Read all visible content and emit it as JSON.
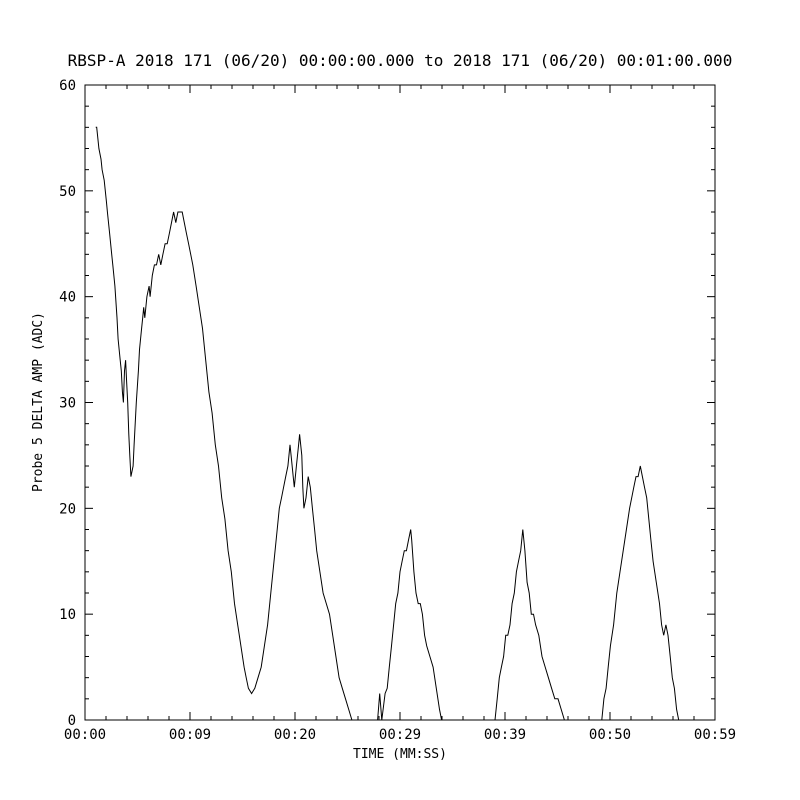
{
  "chart_data": {
    "type": "line",
    "title": "RBSP-A 2018 171 (06/20) 00:00:00.000 to 2018 171 (06/20) 00:01:00.000",
    "xlabel": "TIME (MM:SS)",
    "ylabel": "Probe 5 DELTA AMP (ADC)",
    "xlim": [
      0,
      59
    ],
    "ylim": [
      0,
      60
    ],
    "grid": "off",
    "legend": "none",
    "line_color": "#000000",
    "background_color": "#ffffff",
    "x_ticks": [
      {
        "pos": 0,
        "label": "00:00"
      },
      {
        "pos": 9.8333,
        "label": "00:09"
      },
      {
        "pos": 19.6667,
        "label": "00:20"
      },
      {
        "pos": 29.5,
        "label": "00:29"
      },
      {
        "pos": 39.3333,
        "label": "00:39"
      },
      {
        "pos": 49.1667,
        "label": "00:50"
      },
      {
        "pos": 59,
        "label": "00:59"
      }
    ],
    "y_ticks": [
      0,
      10,
      20,
      30,
      40,
      50,
      60
    ],
    "series": [
      {
        "name": "Probe 5 DELTA AMP (ADC)",
        "points": [
          [
            1.0,
            56
          ],
          [
            1.1,
            56
          ],
          [
            1.3,
            54
          ],
          [
            1.5,
            53
          ],
          [
            1.6,
            52
          ],
          [
            1.8,
            51
          ],
          [
            2.0,
            49
          ],
          [
            2.1,
            48
          ],
          [
            2.3,
            46
          ],
          [
            2.5,
            44
          ],
          [
            2.6,
            43
          ],
          [
            2.8,
            41
          ],
          [
            3.0,
            38
          ],
          [
            3.1,
            36
          ],
          [
            3.3,
            34
          ],
          [
            3.4,
            33
          ],
          [
            3.5,
            31
          ],
          [
            3.6,
            30
          ],
          [
            3.7,
            33
          ],
          [
            3.8,
            34
          ],
          [
            3.9,
            32
          ],
          [
            4.0,
            30
          ],
          [
            4.1,
            27
          ],
          [
            4.2,
            25
          ],
          [
            4.3,
            23
          ],
          [
            4.5,
            24
          ],
          [
            4.6,
            26
          ],
          [
            4.8,
            30
          ],
          [
            5.0,
            33
          ],
          [
            5.1,
            35
          ],
          [
            5.3,
            37
          ],
          [
            5.4,
            38
          ],
          [
            5.5,
            39
          ],
          [
            5.6,
            38
          ],
          [
            5.8,
            40
          ],
          [
            6.0,
            41
          ],
          [
            6.1,
            40
          ],
          [
            6.3,
            42
          ],
          [
            6.5,
            43
          ],
          [
            6.7,
            43
          ],
          [
            6.9,
            44
          ],
          [
            7.1,
            43
          ],
          [
            7.3,
            44
          ],
          [
            7.5,
            45
          ],
          [
            7.7,
            45
          ],
          [
            7.9,
            46
          ],
          [
            8.1,
            47
          ],
          [
            8.3,
            48
          ],
          [
            8.5,
            47
          ],
          [
            8.7,
            48
          ],
          [
            8.9,
            48
          ],
          [
            9.1,
            48
          ],
          [
            9.3,
            47
          ],
          [
            9.5,
            46
          ],
          [
            9.7,
            45
          ],
          [
            9.9,
            44
          ],
          [
            10.1,
            43
          ],
          [
            10.4,
            41
          ],
          [
            10.7,
            39
          ],
          [
            11.0,
            37
          ],
          [
            11.3,
            34
          ],
          [
            11.6,
            31
          ],
          [
            11.9,
            29
          ],
          [
            12.2,
            26
          ],
          [
            12.5,
            24
          ],
          [
            12.8,
            21
          ],
          [
            13.1,
            19
          ],
          [
            13.4,
            16
          ],
          [
            13.7,
            14
          ],
          [
            14.0,
            11
          ],
          [
            14.3,
            9
          ],
          [
            14.6,
            7
          ],
          [
            14.9,
            5
          ],
          [
            15.1,
            4
          ],
          [
            15.3,
            3
          ],
          [
            15.6,
            2.5
          ],
          [
            15.9,
            3
          ],
          [
            16.2,
            4
          ],
          [
            16.5,
            5
          ],
          [
            16.8,
            7
          ],
          [
            17.1,
            9
          ],
          [
            17.4,
            12
          ],
          [
            17.7,
            15
          ],
          [
            18.0,
            18
          ],
          [
            18.2,
            20
          ],
          [
            18.4,
            21
          ],
          [
            18.6,
            22
          ],
          [
            18.8,
            23
          ],
          [
            19.0,
            24
          ],
          [
            19.2,
            26
          ],
          [
            19.3,
            25
          ],
          [
            19.5,
            23
          ],
          [
            19.6,
            22
          ],
          [
            19.8,
            24
          ],
          [
            20.0,
            26
          ],
          [
            20.1,
            27
          ],
          [
            20.3,
            25
          ],
          [
            20.4,
            22
          ],
          [
            20.5,
            20
          ],
          [
            20.7,
            21
          ],
          [
            20.9,
            23
          ],
          [
            21.1,
            22
          ],
          [
            21.3,
            20
          ],
          [
            21.5,
            18
          ],
          [
            21.7,
            16
          ],
          [
            22.0,
            14
          ],
          [
            22.3,
            12
          ],
          [
            22.6,
            11
          ],
          [
            22.9,
            10
          ],
          [
            23.2,
            8
          ],
          [
            23.5,
            6
          ],
          [
            23.8,
            4
          ],
          [
            24.1,
            3
          ],
          [
            24.4,
            2
          ],
          [
            24.7,
            1
          ],
          [
            25.0,
            0
          ],
          [
            27.4,
            0
          ],
          [
            27.6,
            2.5
          ],
          [
            27.8,
            0
          ],
          [
            28.1,
            2.5
          ],
          [
            28.3,
            3
          ],
          [
            28.5,
            5
          ],
          [
            28.7,
            7
          ],
          [
            28.9,
            9
          ],
          [
            29.1,
            11
          ],
          [
            29.3,
            12
          ],
          [
            29.5,
            14
          ],
          [
            29.7,
            15
          ],
          [
            29.9,
            16
          ],
          [
            30.1,
            16
          ],
          [
            30.3,
            17
          ],
          [
            30.5,
            18
          ],
          [
            30.6,
            17
          ],
          [
            30.8,
            14
          ],
          [
            31.0,
            12
          ],
          [
            31.2,
            11
          ],
          [
            31.4,
            11
          ],
          [
            31.6,
            10
          ],
          [
            31.8,
            8
          ],
          [
            32.0,
            7
          ],
          [
            32.3,
            6
          ],
          [
            32.6,
            5
          ],
          [
            32.9,
            3
          ],
          [
            33.2,
            1
          ],
          [
            33.4,
            0
          ],
          [
            38.4,
            0
          ],
          [
            38.6,
            2
          ],
          [
            38.8,
            4
          ],
          [
            39.0,
            5
          ],
          [
            39.2,
            6
          ],
          [
            39.4,
            8
          ],
          [
            39.6,
            8
          ],
          [
            39.8,
            9
          ],
          [
            40.0,
            11
          ],
          [
            40.2,
            12
          ],
          [
            40.4,
            14
          ],
          [
            40.6,
            15
          ],
          [
            40.8,
            16
          ],
          [
            41.0,
            18
          ],
          [
            41.2,
            16
          ],
          [
            41.4,
            13
          ],
          [
            41.6,
            12
          ],
          [
            41.8,
            10
          ],
          [
            42.0,
            10
          ],
          [
            42.2,
            9
          ],
          [
            42.5,
            8
          ],
          [
            42.8,
            6
          ],
          [
            43.1,
            5
          ],
          [
            43.4,
            4
          ],
          [
            43.7,
            3
          ],
          [
            44.0,
            2
          ],
          [
            44.3,
            2
          ],
          [
            44.6,
            1
          ],
          [
            44.9,
            0
          ],
          [
            48.4,
            0
          ],
          [
            48.6,
            2
          ],
          [
            48.8,
            3
          ],
          [
            49.0,
            5
          ],
          [
            49.2,
            7
          ],
          [
            49.5,
            9
          ],
          [
            49.8,
            12
          ],
          [
            50.1,
            14
          ],
          [
            50.4,
            16
          ],
          [
            50.7,
            18
          ],
          [
            51.0,
            20
          ],
          [
            51.2,
            21
          ],
          [
            51.4,
            22
          ],
          [
            51.6,
            23
          ],
          [
            51.8,
            23
          ],
          [
            52.0,
            24
          ],
          [
            52.2,
            23
          ],
          [
            52.4,
            22
          ],
          [
            52.6,
            21
          ],
          [
            52.8,
            19
          ],
          [
            53.0,
            17
          ],
          [
            53.2,
            15
          ],
          [
            53.5,
            13
          ],
          [
            53.8,
            11
          ],
          [
            54.0,
            9
          ],
          [
            54.2,
            8
          ],
          [
            54.4,
            9
          ],
          [
            54.6,
            8
          ],
          [
            54.8,
            6
          ],
          [
            55.0,
            4
          ],
          [
            55.2,
            3
          ],
          [
            55.4,
            1
          ],
          [
            55.6,
            0
          ],
          [
            56.2,
            0
          ]
        ]
      }
    ]
  }
}
